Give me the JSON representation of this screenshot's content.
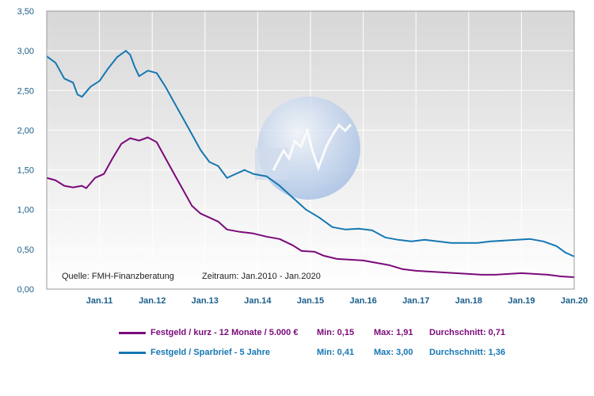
{
  "chart_data": {
    "type": "line",
    "title": "",
    "xlabel": "",
    "ylabel": "",
    "ylim": [
      0,
      3.5
    ],
    "xlim": [
      "2010-01",
      "2020-01"
    ],
    "y_ticks": [
      "0,00",
      "0,50",
      "1,00",
      "1,50",
      "2,00",
      "2,50",
      "3,00",
      "3,50"
    ],
    "x_ticks": [
      "Jan.11",
      "Jan.12",
      "Jan.13",
      "Jan.14",
      "Jan.15",
      "Jan.16",
      "Jan.17",
      "Jan.18",
      "Jan.19",
      "Jan.20"
    ],
    "grid": true,
    "source_note": "Quelle: FMH-Finanzberatung",
    "period_note": "Zeitraum: Jan.2010 - Jan.2020",
    "series": [
      {
        "name": "Festgeld / kurz - 12 Monate / 5.000 €",
        "color": "#7b0a7b",
        "min_label": "Min: 0,15",
        "max_label": "Max: 1,91",
        "avg_label": "Durchschnitt: 0,71",
        "points": [
          [
            "2010-01",
            1.4
          ],
          [
            "2010-03",
            1.37
          ],
          [
            "2010-05",
            1.3
          ],
          [
            "2010-07",
            1.28
          ],
          [
            "2010-09",
            1.3
          ],
          [
            "2010-10",
            1.27
          ],
          [
            "2010-12",
            1.4
          ],
          [
            "2011-02",
            1.45
          ],
          [
            "2011-04",
            1.65
          ],
          [
            "2011-06",
            1.83
          ],
          [
            "2011-08",
            1.9
          ],
          [
            "2011-10",
            1.87
          ],
          [
            "2011-12",
            1.91
          ],
          [
            "2012-02",
            1.85
          ],
          [
            "2012-04",
            1.65
          ],
          [
            "2012-06",
            1.45
          ],
          [
            "2012-08",
            1.25
          ],
          [
            "2012-10",
            1.05
          ],
          [
            "2012-12",
            0.95
          ],
          [
            "2013-02",
            0.9
          ],
          [
            "2013-04",
            0.85
          ],
          [
            "2013-06",
            0.75
          ],
          [
            "2013-09",
            0.72
          ],
          [
            "2013-12",
            0.7
          ],
          [
            "2014-03",
            0.66
          ],
          [
            "2014-06",
            0.63
          ],
          [
            "2014-09",
            0.55
          ],
          [
            "2014-11",
            0.48
          ],
          [
            "2015-02",
            0.47
          ],
          [
            "2015-04",
            0.42
          ],
          [
            "2015-07",
            0.38
          ],
          [
            "2015-10",
            0.37
          ],
          [
            "2016-01",
            0.36
          ],
          [
            "2016-04",
            0.33
          ],
          [
            "2016-07",
            0.3
          ],
          [
            "2016-10",
            0.25
          ],
          [
            "2017-01",
            0.23
          ],
          [
            "2017-04",
            0.22
          ],
          [
            "2017-07",
            0.21
          ],
          [
            "2017-10",
            0.2
          ],
          [
            "2018-01",
            0.19
          ],
          [
            "2018-04",
            0.18
          ],
          [
            "2018-07",
            0.18
          ],
          [
            "2018-10",
            0.19
          ],
          [
            "2019-01",
            0.2
          ],
          [
            "2019-04",
            0.19
          ],
          [
            "2019-07",
            0.18
          ],
          [
            "2019-10",
            0.16
          ],
          [
            "2020-01",
            0.15
          ]
        ]
      },
      {
        "name": "Festgeld / Sparbrief - 5 Jahre",
        "color": "#1577b3",
        "min_label": "Min: 0,41",
        "max_label": "Max: 3,00",
        "avg_label": "Durchschnitt: 1,36",
        "points": [
          [
            "2010-01",
            2.93
          ],
          [
            "2010-03",
            2.85
          ],
          [
            "2010-05",
            2.65
          ],
          [
            "2010-07",
            2.6
          ],
          [
            "2010-08",
            2.45
          ],
          [
            "2010-09",
            2.42
          ],
          [
            "2010-11",
            2.55
          ],
          [
            "2011-01",
            2.62
          ],
          [
            "2011-03",
            2.78
          ],
          [
            "2011-05",
            2.92
          ],
          [
            "2011-07",
            3.0
          ],
          [
            "2011-08",
            2.95
          ],
          [
            "2011-09",
            2.8
          ],
          [
            "2011-10",
            2.68
          ],
          [
            "2011-12",
            2.75
          ],
          [
            "2012-02",
            2.72
          ],
          [
            "2012-04",
            2.55
          ],
          [
            "2012-06",
            2.35
          ],
          [
            "2012-08",
            2.15
          ],
          [
            "2012-10",
            1.95
          ],
          [
            "2012-12",
            1.75
          ],
          [
            "2013-02",
            1.6
          ],
          [
            "2013-04",
            1.55
          ],
          [
            "2013-06",
            1.4
          ],
          [
            "2013-08",
            1.45
          ],
          [
            "2013-10",
            1.5
          ],
          [
            "2013-12",
            1.45
          ],
          [
            "2014-03",
            1.42
          ],
          [
            "2014-06",
            1.3
          ],
          [
            "2014-09",
            1.15
          ],
          [
            "2014-12",
            1.0
          ],
          [
            "2015-03",
            0.9
          ],
          [
            "2015-06",
            0.78
          ],
          [
            "2015-09",
            0.75
          ],
          [
            "2015-12",
            0.76
          ],
          [
            "2016-03",
            0.74
          ],
          [
            "2016-06",
            0.65
          ],
          [
            "2016-09",
            0.62
          ],
          [
            "2016-12",
            0.6
          ],
          [
            "2017-03",
            0.62
          ],
          [
            "2017-06",
            0.6
          ],
          [
            "2017-09",
            0.58
          ],
          [
            "2017-12",
            0.58
          ],
          [
            "2018-03",
            0.58
          ],
          [
            "2018-06",
            0.6
          ],
          [
            "2018-09",
            0.61
          ],
          [
            "2018-12",
            0.62
          ],
          [
            "2019-03",
            0.63
          ],
          [
            "2019-06",
            0.6
          ],
          [
            "2019-09",
            0.54
          ],
          [
            "2019-11",
            0.46
          ],
          [
            "2020-01",
            0.41
          ]
        ]
      }
    ]
  }
}
